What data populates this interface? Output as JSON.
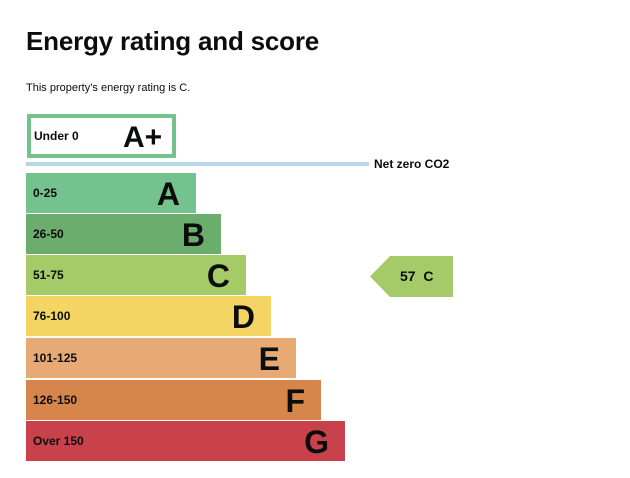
{
  "page": {
    "title": "Energy rating and score",
    "summary": "This property’s energy rating is C."
  },
  "rating_scale": {
    "top_band": {
      "range": "Under 0",
      "letter": "A+",
      "color": "#74c28e"
    },
    "net_zero_label": "Net zero CO2",
    "net_zero_line_color": "#b8d6e8",
    "bands": [
      {
        "range": "0-25",
        "letter": "A",
        "color": "#74c28e"
      },
      {
        "range": "26-50",
        "letter": "B",
        "color": "#6aad6c"
      },
      {
        "range": "51-75",
        "letter": "C",
        "color": "#a5cb69"
      },
      {
        "range": "76-100",
        "letter": "D",
        "color": "#f4d563"
      },
      {
        "range": "101-125",
        "letter": "E",
        "color": "#e8aa74"
      },
      {
        "range": "126-150",
        "letter": "F",
        "color": "#d7864b"
      },
      {
        "range": "Over 150",
        "letter": "G",
        "color": "#c8414b"
      }
    ],
    "current": {
      "score": "57",
      "letter": "C",
      "color": "#a5cb69"
    }
  }
}
